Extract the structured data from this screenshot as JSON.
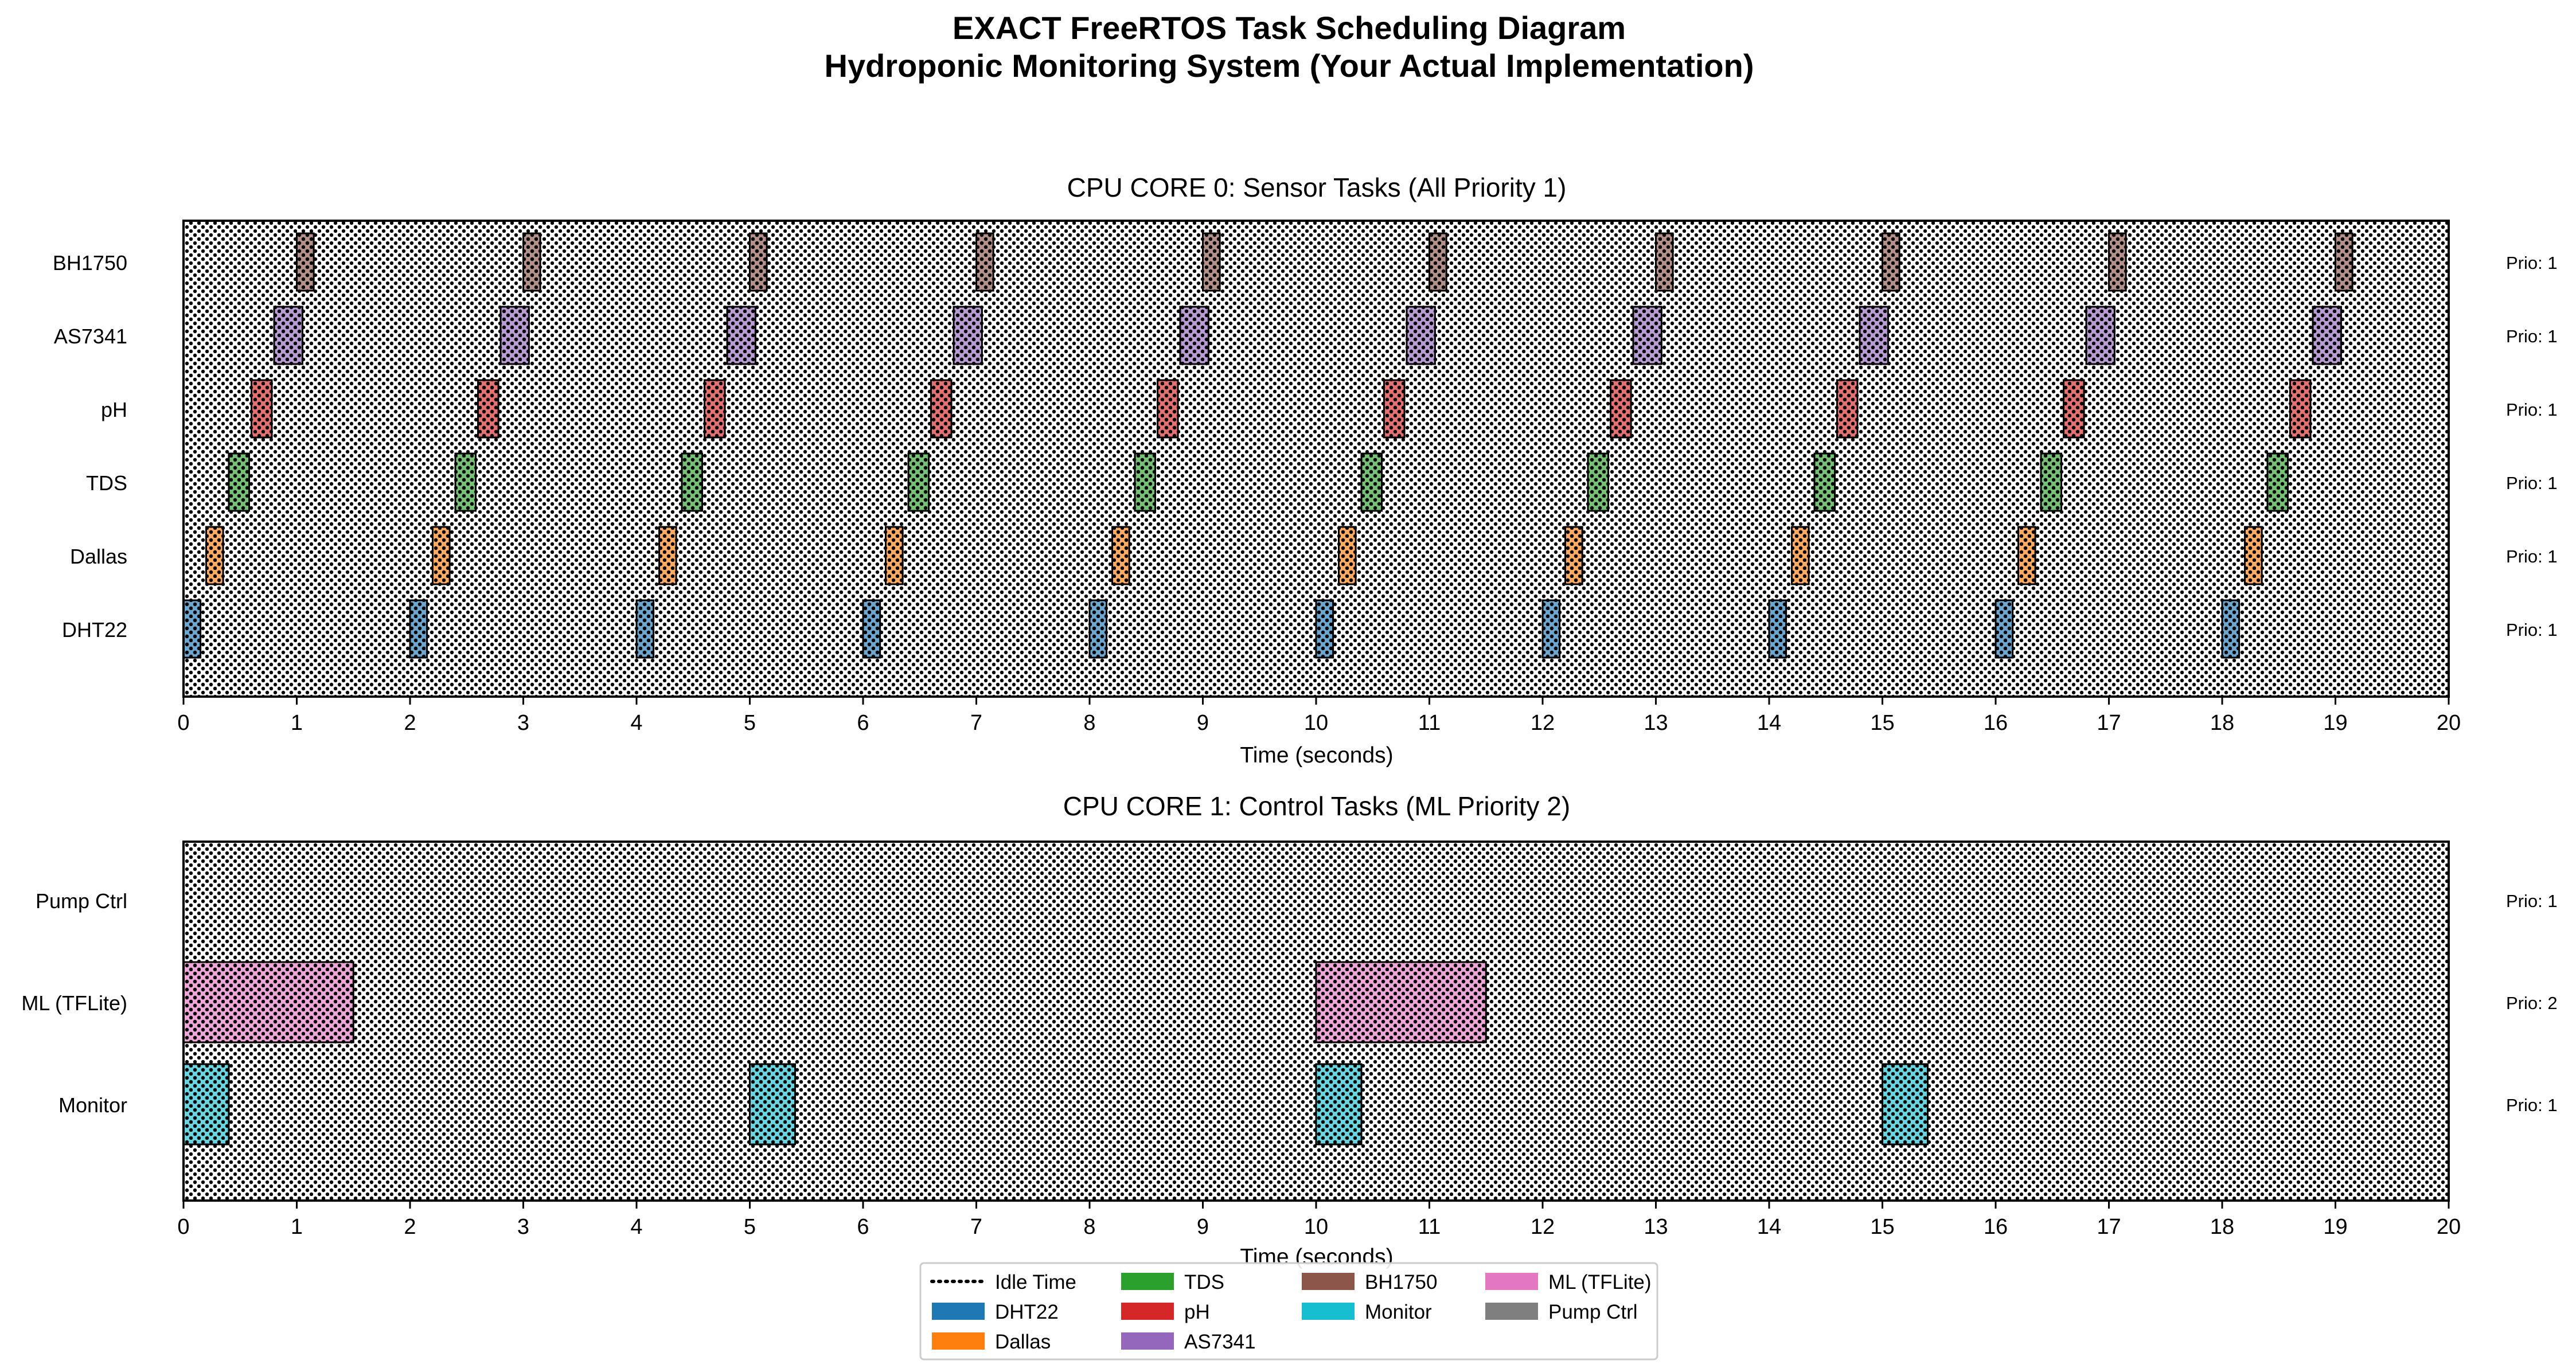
{
  "figure": {
    "title_line1": "EXACT FreeRTOS Task Scheduling Diagram",
    "title_line2": "Hydroponic Monitoring System (Your Actual Implementation)"
  },
  "colors": {
    "DHT22": "#1f77b4",
    "Dallas": "#ff7f0e",
    "TDS": "#2ca02c",
    "pH": "#d62728",
    "AS7341": "#9467bd",
    "BH1750": "#8c564b",
    "Monitor": "#17becf",
    "ML (TFLite)": "#e377c2",
    "Pump Ctrl": "#7f7f7f"
  },
  "chart_data": [
    {
      "type": "gantt",
      "title": "CPU CORE 0: Sensor Tasks (All Priority 1)",
      "xlabel": "Time (seconds)",
      "xlim": [
        0,
        20
      ],
      "xticks": [
        0,
        1,
        2,
        3,
        4,
        5,
        6,
        7,
        8,
        9,
        10,
        11,
        12,
        13,
        14,
        15,
        16,
        17,
        18,
        19,
        20
      ],
      "background": "Idle Time",
      "rows": [
        {
          "name": "DHT22",
          "priority_label": "Prio: 1",
          "duration": 0.15,
          "starts": [
            0,
            2,
            4,
            6,
            8,
            10,
            12,
            14,
            16,
            18
          ]
        },
        {
          "name": "Dallas",
          "priority_label": "Prio: 1",
          "duration": 0.15,
          "starts": [
            0.2,
            2.2,
            4.2,
            6.2,
            8.2,
            10.2,
            12.2,
            14.2,
            16.2,
            18.2
          ]
        },
        {
          "name": "TDS",
          "priority_label": "Prio: 1",
          "duration": 0.18,
          "starts": [
            0.4,
            2.4,
            4.4,
            6.4,
            8.4,
            10.4,
            12.4,
            14.4,
            16.4,
            18.4
          ]
        },
        {
          "name": "pH",
          "priority_label": "Prio: 1",
          "duration": 0.18,
          "starts": [
            0.6,
            2.6,
            4.6,
            6.6,
            8.6,
            10.6,
            12.6,
            14.6,
            16.6,
            18.6
          ]
        },
        {
          "name": "AS7341",
          "priority_label": "Prio: 1",
          "duration": 0.25,
          "starts": [
            0.8,
            2.8,
            4.8,
            6.8,
            8.8,
            10.8,
            12.8,
            14.8,
            16.8,
            18.8
          ]
        },
        {
          "name": "BH1750",
          "priority_label": "Prio: 1",
          "duration": 0.15,
          "starts": [
            1,
            3,
            5,
            7,
            9,
            11,
            13,
            15,
            17,
            19
          ]
        }
      ]
    },
    {
      "type": "gantt",
      "title": "CPU CORE 1: Control Tasks (ML Priority 2)",
      "xlabel": "Time (seconds)",
      "xlim": [
        0,
        20
      ],
      "xticks": [
        0,
        1,
        2,
        3,
        4,
        5,
        6,
        7,
        8,
        9,
        10,
        11,
        12,
        13,
        14,
        15,
        16,
        17,
        18,
        19,
        20
      ],
      "background": "Idle Time",
      "rows": [
        {
          "name": "Monitor",
          "priority_label": "Prio: 1",
          "duration": 0.4,
          "starts": [
            0,
            5,
            10,
            15
          ]
        },
        {
          "name": "ML (TFLite)",
          "priority_label": "Prio: 2",
          "duration": 1.5,
          "starts": [
            0,
            10
          ]
        },
        {
          "name": "Pump Ctrl",
          "priority_label": "Prio: 1",
          "duration": 0,
          "starts": []
        }
      ]
    }
  ],
  "legend": {
    "placement": "bottom-center",
    "columns": [
      [
        "Idle Time",
        "DHT22",
        "Dallas"
      ],
      [
        "TDS",
        "pH",
        "AS7341"
      ],
      [
        "BH1750",
        "Monitor"
      ],
      [
        "ML (TFLite)",
        "Pump Ctrl"
      ]
    ]
  }
}
